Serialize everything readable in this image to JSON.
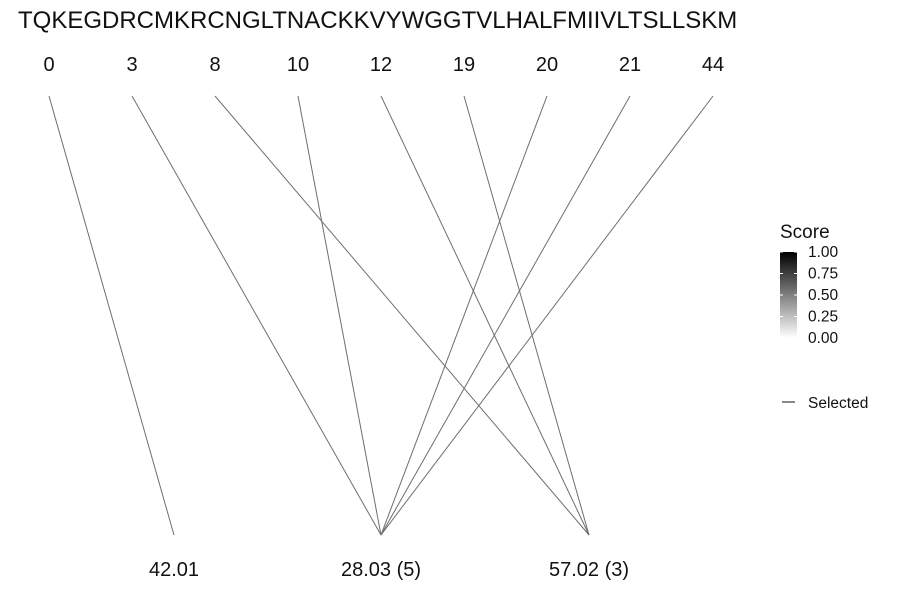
{
  "chart_data": {
    "type": "bipartite-link",
    "title": "TQKEGDRCMKRCNGLTNACKKVYWGGTVLHALFMIIVLTSLLSKM",
    "top_labels": [
      "0",
      "3",
      "8",
      "10",
      "12",
      "19",
      "20",
      "21",
      "44"
    ],
    "bottom_labels": [
      "42.01",
      "28.03 (5)",
      "57.02 (3)"
    ],
    "links": [
      {
        "from": "0",
        "to": "42.01"
      },
      {
        "from": "3",
        "to": "28.03 (5)"
      },
      {
        "from": "8",
        "to": "57.02 (3)"
      },
      {
        "from": "10",
        "to": "28.03 (5)"
      },
      {
        "from": "12",
        "to": "57.02 (3)"
      },
      {
        "from": "19",
        "to": "57.02 (3)"
      },
      {
        "from": "20",
        "to": "28.03 (5)"
      },
      {
        "from": "21",
        "to": "28.03 (5)"
      },
      {
        "from": "44",
        "to": "28.03 (5)"
      }
    ],
    "legend": {
      "score_title": "Score",
      "score_ticks": [
        "1.00",
        "0.75",
        "0.50",
        "0.25",
        "0.00"
      ],
      "score_gradient": [
        "#000000",
        "#ffffff"
      ],
      "line_label": "Selected",
      "placement": "right"
    },
    "line_color": "#6e6e6e"
  }
}
